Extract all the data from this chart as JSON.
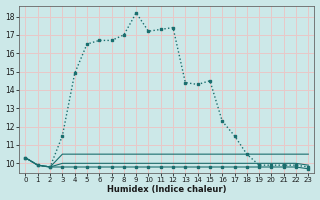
{
  "xlabel": "Humidex (Indice chaleur)",
  "bg_color": "#cce8e8",
  "grid_color": "#e8c8c8",
  "line_color": "#1a6e6e",
  "xlim": [
    -0.5,
    23.5
  ],
  "ylim": [
    9.5,
    18.6
  ],
  "yticks": [
    10,
    11,
    12,
    13,
    14,
    15,
    16,
    17,
    18
  ],
  "xticks": [
    0,
    1,
    2,
    3,
    4,
    5,
    6,
    7,
    8,
    9,
    10,
    11,
    12,
    13,
    14,
    15,
    16,
    17,
    18,
    19,
    20,
    21,
    22,
    23
  ],
  "series_main": {
    "x": [
      0,
      1,
      2,
      3,
      4,
      5,
      6,
      7,
      8,
      9,
      10,
      11,
      12,
      13,
      14,
      15,
      16,
      17,
      18,
      19,
      20,
      21,
      22,
      23
    ],
    "y": [
      10.3,
      9.9,
      9.8,
      11.5,
      14.9,
      16.5,
      16.7,
      16.7,
      17.0,
      18.2,
      17.2,
      17.3,
      17.4,
      14.4,
      14.3,
      14.5,
      12.3,
      11.5,
      10.5,
      9.9,
      9.9,
      9.9,
      9.9,
      9.8
    ]
  },
  "series_mid1": {
    "x": [
      0,
      1,
      2,
      3,
      4,
      5,
      6,
      7,
      8,
      9,
      10,
      11,
      12,
      13,
      14,
      15,
      16,
      17,
      18,
      19,
      20,
      21,
      22,
      23
    ],
    "y": [
      10.3,
      9.9,
      9.8,
      10.5,
      10.5,
      10.5,
      10.5,
      10.5,
      10.5,
      10.5,
      10.5,
      10.5,
      10.5,
      10.5,
      10.5,
      10.5,
      10.5,
      10.5,
      10.5,
      10.5,
      10.5,
      10.5,
      10.5,
      10.5
    ]
  },
  "series_mid2": {
    "x": [
      0,
      1,
      2,
      3,
      4,
      5,
      6,
      7,
      8,
      9,
      10,
      11,
      12,
      13,
      14,
      15,
      16,
      17,
      18,
      19,
      20,
      21,
      22,
      23
    ],
    "y": [
      10.3,
      9.9,
      9.8,
      10.0,
      10.0,
      10.0,
      10.0,
      10.0,
      10.0,
      10.0,
      10.0,
      10.0,
      10.0,
      10.0,
      10.0,
      10.0,
      10.0,
      10.0,
      10.0,
      10.0,
      10.0,
      10.0,
      10.0,
      9.9
    ]
  },
  "series_low": {
    "x": [
      0,
      1,
      2,
      3,
      4,
      5,
      6,
      7,
      8,
      9,
      10,
      11,
      12,
      13,
      14,
      15,
      16,
      17,
      18,
      19,
      20,
      21,
      22,
      23
    ],
    "y": [
      10.3,
      9.9,
      9.8,
      9.8,
      9.8,
      9.8,
      9.8,
      9.8,
      9.8,
      9.8,
      9.8,
      9.8,
      9.8,
      9.8,
      9.8,
      9.8,
      9.8,
      9.8,
      9.8,
      9.8,
      9.8,
      9.8,
      9.8,
      9.7
    ]
  }
}
